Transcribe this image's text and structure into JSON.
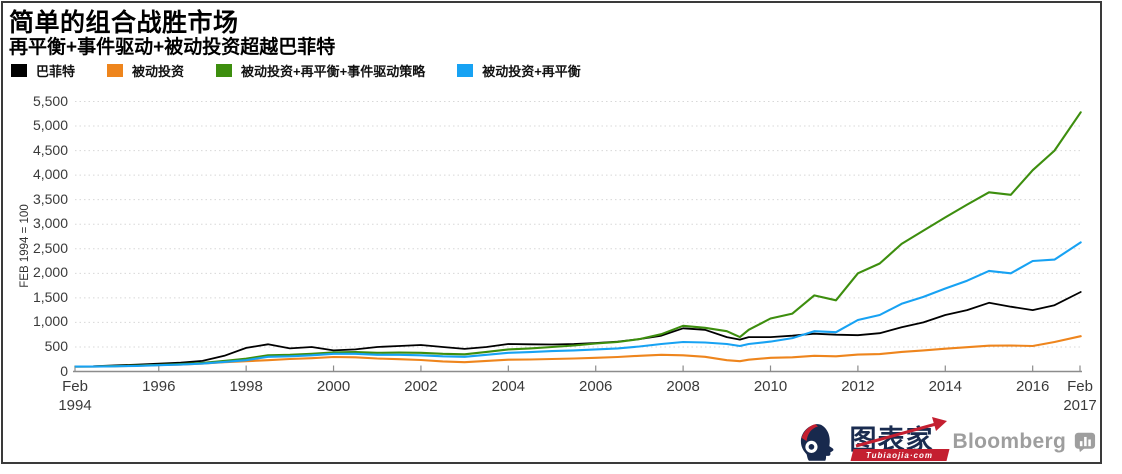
{
  "header": {
    "title": "简单的组合战胜市场",
    "subtitle": "再平衡+事件驱动+被动投资超越巴菲特"
  },
  "legend": {
    "items": [
      {
        "key": "buffett",
        "label": "巴菲特",
        "color": "#000000"
      },
      {
        "key": "passive",
        "label": "被动投资",
        "color": "#ee851d"
      },
      {
        "key": "passive-rebalance-event",
        "label": "被动投资+再平衡+事件驱动策略",
        "color": "#3d8e0e"
      },
      {
        "key": "passive-rebalance",
        "label": "被动投资+再平衡",
        "color": "#17a2f3"
      }
    ]
  },
  "chart_data": {
    "type": "line",
    "title": "简单的组合战胜市场",
    "subtitle": "再平衡+事件驱动+被动投资超越巴菲特",
    "ylabel": "FEB 1994 = 100",
    "grid": "horizontal-dotted",
    "legend_position": "top",
    "ylim": [
      0,
      5500
    ],
    "xlim": [
      1994.083,
      2017.083
    ],
    "yticks": [
      {
        "value": 0,
        "label": "0"
      },
      {
        "value": 500,
        "label": "500"
      },
      {
        "value": 1000,
        "label": "1,000"
      },
      {
        "value": 1500,
        "label": "1,500"
      },
      {
        "value": 2000,
        "label": "2,000"
      },
      {
        "value": 2500,
        "label": "2,500"
      },
      {
        "value": 3000,
        "label": "3,000"
      },
      {
        "value": 3500,
        "label": "3,500"
      },
      {
        "value": 4000,
        "label": "4,000"
      },
      {
        "value": 4500,
        "label": "4,500"
      },
      {
        "value": 5000,
        "label": "5,000"
      },
      {
        "value": 5500,
        "label": "5,500"
      }
    ],
    "xticks": [
      {
        "year": 1994.083,
        "lines": [
          "Feb",
          "1994"
        ]
      },
      {
        "year": 1996,
        "lines": [
          "1996"
        ]
      },
      {
        "year": 1998,
        "lines": [
          "1998"
        ]
      },
      {
        "year": 2000,
        "lines": [
          "2000"
        ]
      },
      {
        "year": 2002,
        "lines": [
          "2002"
        ]
      },
      {
        "year": 2004,
        "lines": [
          "2004"
        ]
      },
      {
        "year": 2006,
        "lines": [
          "2006"
        ]
      },
      {
        "year": 2008,
        "lines": [
          "2008"
        ]
      },
      {
        "year": 2010,
        "lines": [
          "2010"
        ]
      },
      {
        "year": 2012,
        "lines": [
          "2012"
        ]
      },
      {
        "year": 2014,
        "lines": [
          "2014"
        ]
      },
      {
        "year": 2016,
        "lines": [
          "2016"
        ]
      },
      {
        "year": 2017.083,
        "lines": [
          "Feb",
          "2017"
        ]
      }
    ],
    "x": [
      1994.1,
      1994.5,
      1995,
      1995.5,
      1996,
      1996.5,
      1997,
      1997.5,
      1998,
      1998.5,
      1999,
      1999.5,
      2000,
      2000.5,
      2001,
      2001.5,
      2002,
      2002.5,
      2003,
      2003.5,
      2004,
      2004.5,
      2005,
      2005.5,
      2006,
      2006.5,
      2007,
      2007.5,
      2008,
      2008.5,
      2009,
      2009.3,
      2009.5,
      2010,
      2010.5,
      2011,
      2011.5,
      2012,
      2012.5,
      2013,
      2013.5,
      2014,
      2014.5,
      2015,
      2015.5,
      2016,
      2016.5,
      2017.1
    ],
    "series": [
      {
        "key": "buffett",
        "name": "巴菲特",
        "color": "#000000",
        "values": [
          100,
          105,
          125,
          140,
          160,
          180,
          215,
          320,
          480,
          555,
          470,
          500,
          430,
          450,
          500,
          520,
          540,
          500,
          460,
          500,
          560,
          555,
          550,
          560,
          580,
          610,
          660,
          730,
          880,
          850,
          700,
          650,
          700,
          700,
          730,
          770,
          750,
          740,
          780,
          900,
          1000,
          1150,
          1250,
          1400,
          1320,
          1250,
          1350,
          1620
        ]
      },
      {
        "key": "passive",
        "name": "被动投资",
        "color": "#ee851d",
        "values": [
          100,
          100,
          107,
          118,
          130,
          140,
          160,
          190,
          210,
          230,
          255,
          270,
          295,
          290,
          265,
          250,
          235,
          205,
          190,
          215,
          240,
          245,
          255,
          265,
          280,
          295,
          320,
          340,
          330,
          300,
          230,
          210,
          240,
          280,
          290,
          320,
          310,
          345,
          355,
          400,
          430,
          465,
          495,
          525,
          530,
          520,
          600,
          720
        ]
      },
      {
        "key": "passive-rebalance-event",
        "name": "被动投资+再平衡+事件驱动策略",
        "color": "#3d8e0e",
        "values": [
          100,
          102,
          110,
          122,
          135,
          150,
          175,
          215,
          260,
          330,
          340,
          360,
          390,
          395,
          380,
          385,
          380,
          360,
          350,
          400,
          450,
          470,
          500,
          530,
          570,
          600,
          660,
          760,
          930,
          890,
          820,
          700,
          850,
          1080,
          1180,
          1550,
          1450,
          2000,
          2200,
          2600,
          2870,
          3140,
          3400,
          3650,
          3600,
          4100,
          4500,
          5280
        ]
      },
      {
        "key": "passive-rebalance",
        "name": "被动投资+再平衡",
        "color": "#17a2f3",
        "values": [
          100,
          100,
          105,
          115,
          128,
          140,
          160,
          195,
          230,
          300,
          310,
          330,
          360,
          360,
          340,
          340,
          330,
          310,
          300,
          340,
          380,
          395,
          415,
          430,
          450,
          470,
          510,
          560,
          600,
          590,
          560,
          520,
          560,
          610,
          680,
          820,
          800,
          1050,
          1150,
          1380,
          1520,
          1690,
          1850,
          2050,
          2000,
          2250,
          2280,
          2630
        ]
      }
    ]
  },
  "footer": {
    "tubiaojia_text": "图表家",
    "tubiaojia_domain": "Tubiaojia·com",
    "bloomberg_label": "Bloomberg"
  }
}
